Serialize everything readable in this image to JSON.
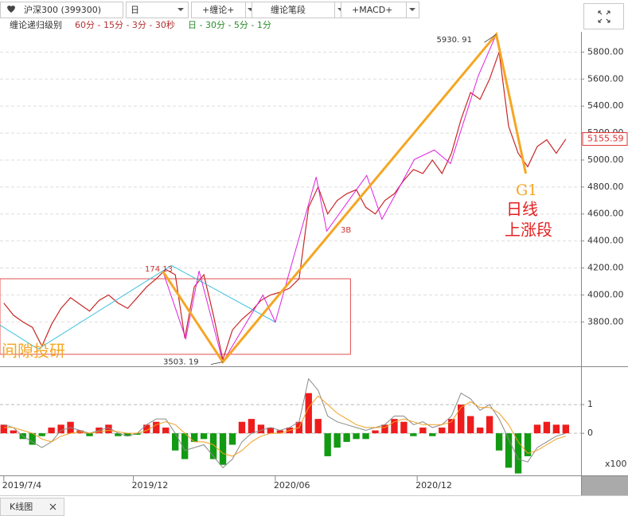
{
  "toolbar": {
    "symbol": "沪深300 (399300)",
    "period": "日",
    "buttons": [
      "+缠论+",
      "缠论笔段",
      "+MACD+"
    ]
  },
  "levels": {
    "label": "缠论递归级别",
    "red": "60分 - 15分 - 3分 - 30秒",
    "green": "日 - 30分 - 5分 - 1分"
  },
  "chart_data": [
    {
      "type": "line",
      "color": "#c82828",
      "values": [
        3940,
        3850,
        3800,
        3760,
        3620,
        3780,
        3900,
        3980,
        3930,
        3880,
        3960,
        4000,
        3940,
        3900,
        3980,
        4060,
        4120,
        4190,
        4150,
        3680,
        4060,
        4150,
        3850,
        3520,
        3740,
        3820,
        3880,
        3960,
        4000,
        4020,
        4050,
        4120,
        4650,
        4800,
        4600,
        4700,
        4750,
        4780,
        4650,
        4600,
        4700,
        4750,
        4850,
        4930,
        4900,
        5000,
        4900,
        5050,
        5300,
        5500,
        5450,
        5600,
        5800,
        5250,
        5050,
        4950,
        5100,
        5150,
        5050,
        5155
      ],
      "xlim": [
        -0.4,
        60.6
      ],
      "ylim": [
        3480,
        5950
      ],
      "yticks": [
        {
          "value": 3800,
          "label": "3800.00"
        },
        {
          "value": 4000,
          "label": "4000.00"
        },
        {
          "value": 4200,
          "label": "4200.00"
        },
        {
          "value": 4400,
          "label": "4400.00"
        },
        {
          "value": 4600,
          "label": "4600.00"
        },
        {
          "value": 4800,
          "label": "4800.00"
        },
        {
          "value": 5000,
          "label": "5000.00"
        },
        {
          "value": 5200,
          "label": "5200.00"
        },
        {
          "value": 5400,
          "label": "5400.00"
        },
        {
          "value": 5600,
          "label": "5600.00"
        },
        {
          "value": 5800,
          "label": "5800.00"
        }
      ],
      "grid": true,
      "last_price": 5155.59,
      "segment_line": {
        "color": "#f5a623",
        "x": [
          16.7,
          23,
          51.7,
          54.8
        ],
        "values": [
          4175,
          3503.19,
          5930.91,
          4900
        ],
        "value_labels": [
          null,
          "3503. 19",
          "5930. 91",
          null
        ]
      },
      "bi_line": {
        "color": "#e020e0",
        "x": [
          16.7,
          19.1,
          20.5,
          23,
          27.2,
          28.5,
          32.8,
          33.9,
          38.1,
          39.7,
          43.1,
          45.2,
          46.9,
          49.8,
          51.7
        ],
        "values": [
          4175,
          3676,
          4178,
          3503,
          3999,
          3799,
          4874,
          4473,
          4886,
          4561,
          5004,
          5074,
          4974,
          5623,
          5931
        ]
      },
      "trend_line": {
        "color": "#3cc0e0",
        "x": [
          -0.4,
          3.6,
          17.6,
          28.5
        ],
        "values": [
          3776,
          3599,
          4219,
          3799
        ]
      },
      "box": {
        "color": "#e05050",
        "x": [
          -0.4,
          36.4
        ],
        "values": [
          3560,
          4120
        ]
      },
      "annotations": [
        "174 13",
        "3B",
        "G1",
        "日线",
        "上涨段",
        "间隙投研"
      ]
    },
    {
      "type": "bar",
      "up_color": "#ee1c1c",
      "down_color": "#139a13",
      "values": [
        0.3,
        0.1,
        -0.2,
        -0.4,
        -0.1,
        0.2,
        0.3,
        0.4,
        0.1,
        -0.1,
        0.2,
        0.3,
        -0.1,
        -0.1,
        -0.05,
        0.3,
        0.4,
        0.2,
        -0.6,
        -0.9,
        -0.3,
        -0.2,
        -0.9,
        -1.1,
        -0.4,
        0.4,
        0.5,
        0.3,
        0.2,
        0.1,
        0.2,
        0.4,
        1.4,
        0.5,
        -0.8,
        -0.5,
        -0.3,
        -0.2,
        -0.2,
        0.1,
        0.3,
        0.5,
        0.4,
        -0.1,
        0.2,
        -0.1,
        0.2,
        0.5,
        1.0,
        0.6,
        0.2,
        0.6,
        -0.6,
        -1.2,
        -1.4,
        -0.8,
        0.3,
        0.4,
        0.3,
        0.3
      ],
      "dif": {
        "color": "#8a8a8a",
        "values": [
          0.3,
          0.2,
          -0.1,
          -0.3,
          -0.5,
          -0.3,
          0.1,
          0.2,
          0.1,
          0,
          0.1,
          0.2,
          0,
          -0.1,
          0,
          0.3,
          0.5,
          0.5,
          0,
          -0.6,
          -0.5,
          -0.4,
          -0.8,
          -1.2,
          -0.9,
          -0.3,
          0,
          0.1,
          0.2,
          0.1,
          0.2,
          0.4,
          1.9,
          1.5,
          0.6,
          0.4,
          0.3,
          0.2,
          0.1,
          0.2,
          0.3,
          0.6,
          0.6,
          0.3,
          0.4,
          0.2,
          0.3,
          0.6,
          1.4,
          1.2,
          0.8,
          1.0,
          0.5,
          -0.2,
          -0.9,
          -1.0,
          -0.5,
          -0.3,
          -0.1,
          0
        ]
      },
      "dea": {
        "color": "#f0a020",
        "values": [
          0.2,
          0.2,
          0.1,
          0,
          -0.2,
          -0.3,
          -0.1,
          0,
          0.05,
          0,
          0.05,
          0.1,
          0.05,
          0,
          0,
          0.1,
          0.3,
          0.4,
          0.3,
          0,
          -0.3,
          -0.3,
          -0.4,
          -0.7,
          -0.8,
          -0.6,
          -0.3,
          -0.1,
          0,
          0,
          0.1,
          0.2,
          0.9,
          1.3,
          1.0,
          0.7,
          0.5,
          0.3,
          0.2,
          0.2,
          0.2,
          0.4,
          0.5,
          0.4,
          0.3,
          0.3,
          0.3,
          0.4,
          0.9,
          1.1,
          0.9,
          0.9,
          0.7,
          0.3,
          -0.3,
          -0.7,
          -0.6,
          -0.4,
          -0.2,
          -0.1
        ]
      },
      "xlim": [
        -0.4,
        60.6
      ],
      "ylim": [
        -1.44,
        2.28
      ],
      "yticks": [
        0,
        1
      ],
      "unit_label": "x100",
      "xticks": [
        {
          "value": 0,
          "label": "2019/7/4"
        },
        {
          "value": 13.6,
          "label": "2019/12"
        },
        {
          "value": 28.5,
          "label": "2020/06"
        },
        {
          "value": 43.4,
          "label": "2020/12"
        }
      ]
    }
  ],
  "tab": "K线图"
}
